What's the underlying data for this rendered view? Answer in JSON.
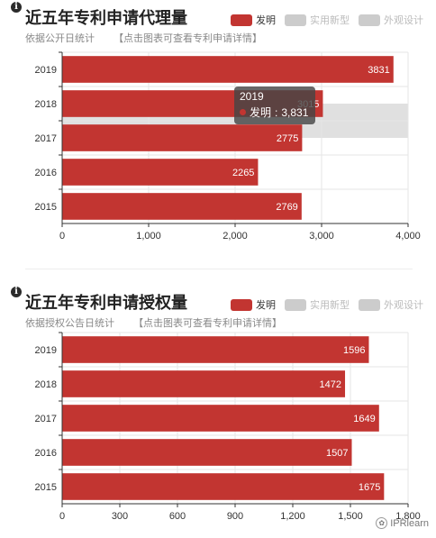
{
  "colors": {
    "invention": "#c23531",
    "inactive": "#cccccc",
    "grid": "#e6e6e6",
    "axis": "#333333",
    "highlight": "#d6d6d6"
  },
  "legend": {
    "items": [
      "发明",
      "实用新型",
      "外观设计"
    ]
  },
  "panels": [
    {
      "title": "近五年专利申请代理量",
      "subtitle": "依据公开日统计",
      "subtitle_link": "【点击图表可查看专利申请详情】"
    },
    {
      "title": "近五年专利申请授权量",
      "subtitle": "依据授权公告日统计",
      "subtitle_link": "【点击图表可查看专利申请详情】"
    }
  ],
  "tooltip": {
    "year": "2019",
    "series": "发明",
    "value_text": "3,831"
  },
  "watermark": {
    "text": "IPRlearn"
  },
  "chart_data": [
    {
      "type": "bar",
      "orientation": "horizontal",
      "title": "近五年专利申请代理量",
      "categories": [
        "2019",
        "2018",
        "2017",
        "2016",
        "2015"
      ],
      "series": [
        {
          "name": "发明",
          "values": [
            3831,
            3015,
            2775,
            2265,
            2769
          ]
        }
      ],
      "xlim": [
        0,
        4000
      ],
      "xticks": [
        "0",
        "1,000",
        "2,000",
        "3,000",
        "4,000"
      ],
      "grid": true,
      "legend_position": "top-right",
      "highlighted_category": "2018"
    },
    {
      "type": "bar",
      "orientation": "horizontal",
      "title": "近五年专利申请授权量",
      "categories": [
        "2019",
        "2018",
        "2017",
        "2016",
        "2015"
      ],
      "series": [
        {
          "name": "发明",
          "values": [
            1596,
            1472,
            1649,
            1507,
            1675
          ]
        }
      ],
      "xlim": [
        0,
        1800
      ],
      "xticks": [
        "0",
        "300",
        "600",
        "900",
        "1,200",
        "1,500",
        "1,800"
      ],
      "grid": true,
      "legend_position": "top-right"
    }
  ]
}
